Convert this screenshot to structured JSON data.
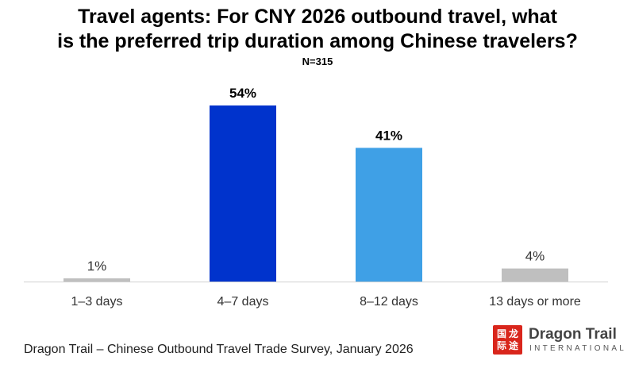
{
  "chart_data": {
    "type": "bar",
    "title": "Travel agents: For CNY 2026 outbound travel, what is the preferred trip duration among Chinese travelers?",
    "title_lines": [
      "Travel agents: For CNY 2026 outbound travel, what",
      "is the preferred trip duration among Chinese travelers?"
    ],
    "subtitle": "N=315",
    "categories": [
      "1–3 days",
      "4–7 days",
      "8–12 days",
      "13 days or more"
    ],
    "values": [
      1,
      54,
      41,
      4
    ],
    "data_labels": [
      "1%",
      "54%",
      "41%",
      "4%"
    ],
    "bar_colors": [
      "#bfbfbf",
      "#0033cc",
      "#3fa0e6",
      "#bfbfbf"
    ],
    "label_bold": [
      false,
      true,
      true,
      false
    ],
    "ylim": [
      0,
      54
    ],
    "grid": false,
    "legend": "none"
  },
  "footer": {
    "source": "Dragon Trail – Chinese Outbound Travel Trade Survey, January 2026"
  },
  "logo": {
    "name": "Dragon Trail",
    "sub": "INTERNATIONAL",
    "glyphs": [
      "国",
      "龙",
      "际",
      "途"
    ],
    "color": "#d9261c"
  }
}
